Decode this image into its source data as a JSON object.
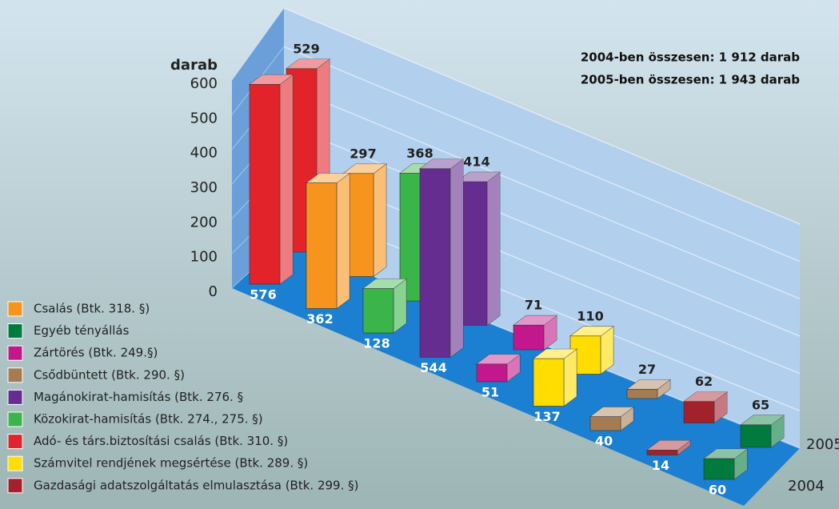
{
  "chart_data": {
    "type": "bar",
    "y_label": "darab",
    "annotations": [
      "2004-ben összesen: 1 912 darab",
      "2005-ben összesen: 1 943 darab"
    ],
    "categories": [
      "Adó- és társ.biztosítási csalás (Btk. 310. §)",
      "Csalás (Btk. 318. §)",
      "Közokirat-hamisítás (Btk. 274., 275. §)",
      "Magánokirat-hamisítás (Btk. 276. §",
      "Zártörés (Btk. 249.§)",
      "Számvitel rendjének megsértése (Btk. 289. §)",
      "Csődbüntett (Btk. 290. §)",
      "Gazdasági adatszolgáltatás elmulasztása (Btk. 299. §)",
      "Egyéb tényállás"
    ],
    "colors": [
      "#e3232a",
      "#f7941d",
      "#39b54a",
      "#662d91",
      "#c2188b",
      "#ffdd00",
      "#a57c52",
      "#a3212a",
      "#007a3d"
    ],
    "series": [
      {
        "name": "2004",
        "values": [
          576,
          362,
          128,
          544,
          51,
          137,
          40,
          14,
          60
        ]
      },
      {
        "name": "2005",
        "values": [
          529,
          297,
          368,
          414,
          71,
          110,
          27,
          62,
          65
        ]
      }
    ],
    "ylim": [
      0,
      600
    ],
    "yticks": [
      0,
      100,
      200,
      300,
      400,
      500,
      600
    ],
    "grid": true
  }
}
